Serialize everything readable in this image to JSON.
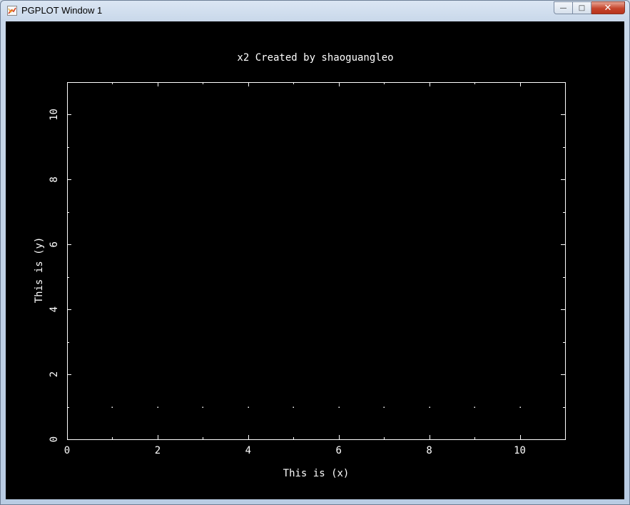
{
  "window": {
    "title": "PGPLOT Window 1",
    "minimize_glyph": "—",
    "maximize_glyph": "□",
    "close_glyph": "✕",
    "icon": "pgplot-app-icon"
  },
  "plot": {
    "title": "x2  Created by shaoguangleo",
    "background": "#000000",
    "foreground": "#ffffff"
  },
  "chart_data": {
    "type": "scatter",
    "title": "x2  Created by shaoguangleo",
    "xlabel": "This is (x)",
    "ylabel": "This is (y)",
    "xlim": [
      0,
      11
    ],
    "ylim": [
      0,
      11
    ],
    "xticks": [
      "0",
      "2",
      "4",
      "6",
      "8",
      "10"
    ],
    "yticks": [
      "0",
      "2",
      "4",
      "6",
      "8",
      "10"
    ],
    "grid": false,
    "series": [
      {
        "x": [
          1,
          2,
          3,
          4,
          5,
          6,
          7,
          8,
          9,
          10
        ],
        "y": [
          1,
          1,
          1,
          1,
          1,
          1,
          1,
          1,
          1,
          1
        ]
      }
    ]
  }
}
